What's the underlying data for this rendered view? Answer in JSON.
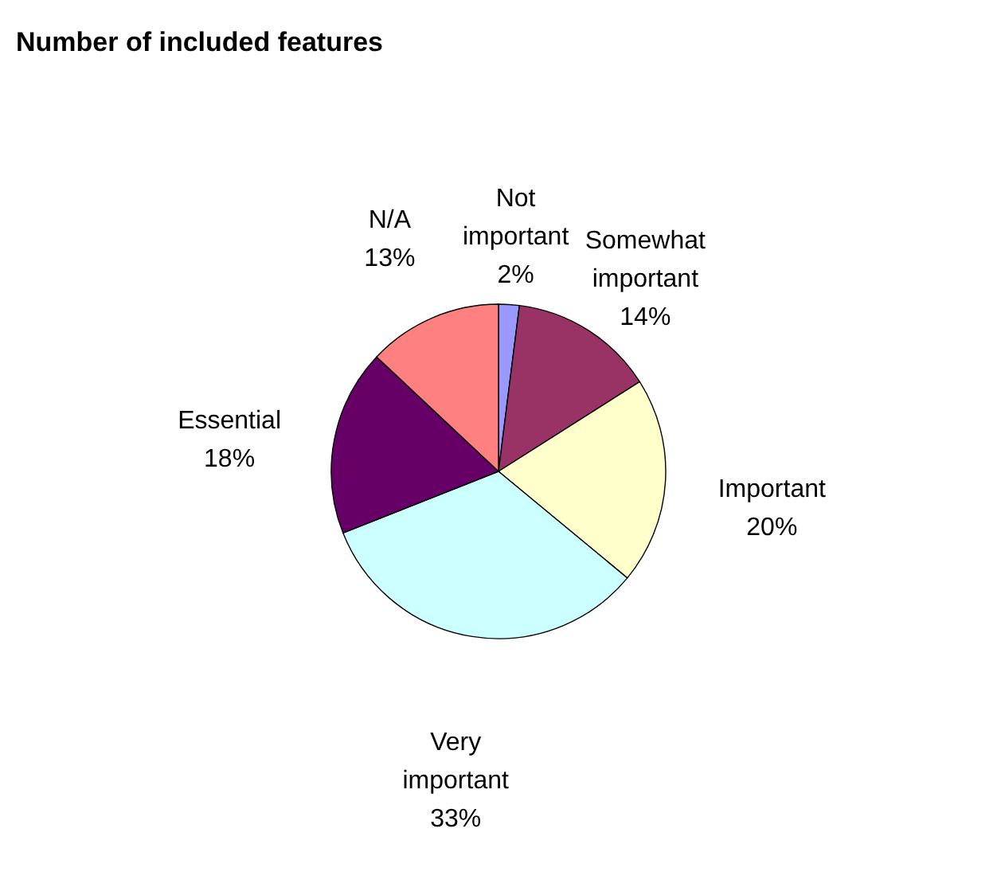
{
  "chart_data": {
    "type": "pie",
    "title": "Number of included features",
    "categories": [
      "Not important",
      "Somewhat important",
      "Important",
      "Very important",
      "Essential",
      "N/A"
    ],
    "values": [
      2,
      14,
      20,
      33,
      18,
      13
    ],
    "value_labels": [
      "2%",
      "14%",
      "20%",
      "33%",
      "18%",
      "13%"
    ],
    "colors": [
      "#9999ff",
      "#993366",
      "#ffffcc",
      "#ccffff",
      "#660066",
      "#ff8080"
    ],
    "legend": false
  }
}
